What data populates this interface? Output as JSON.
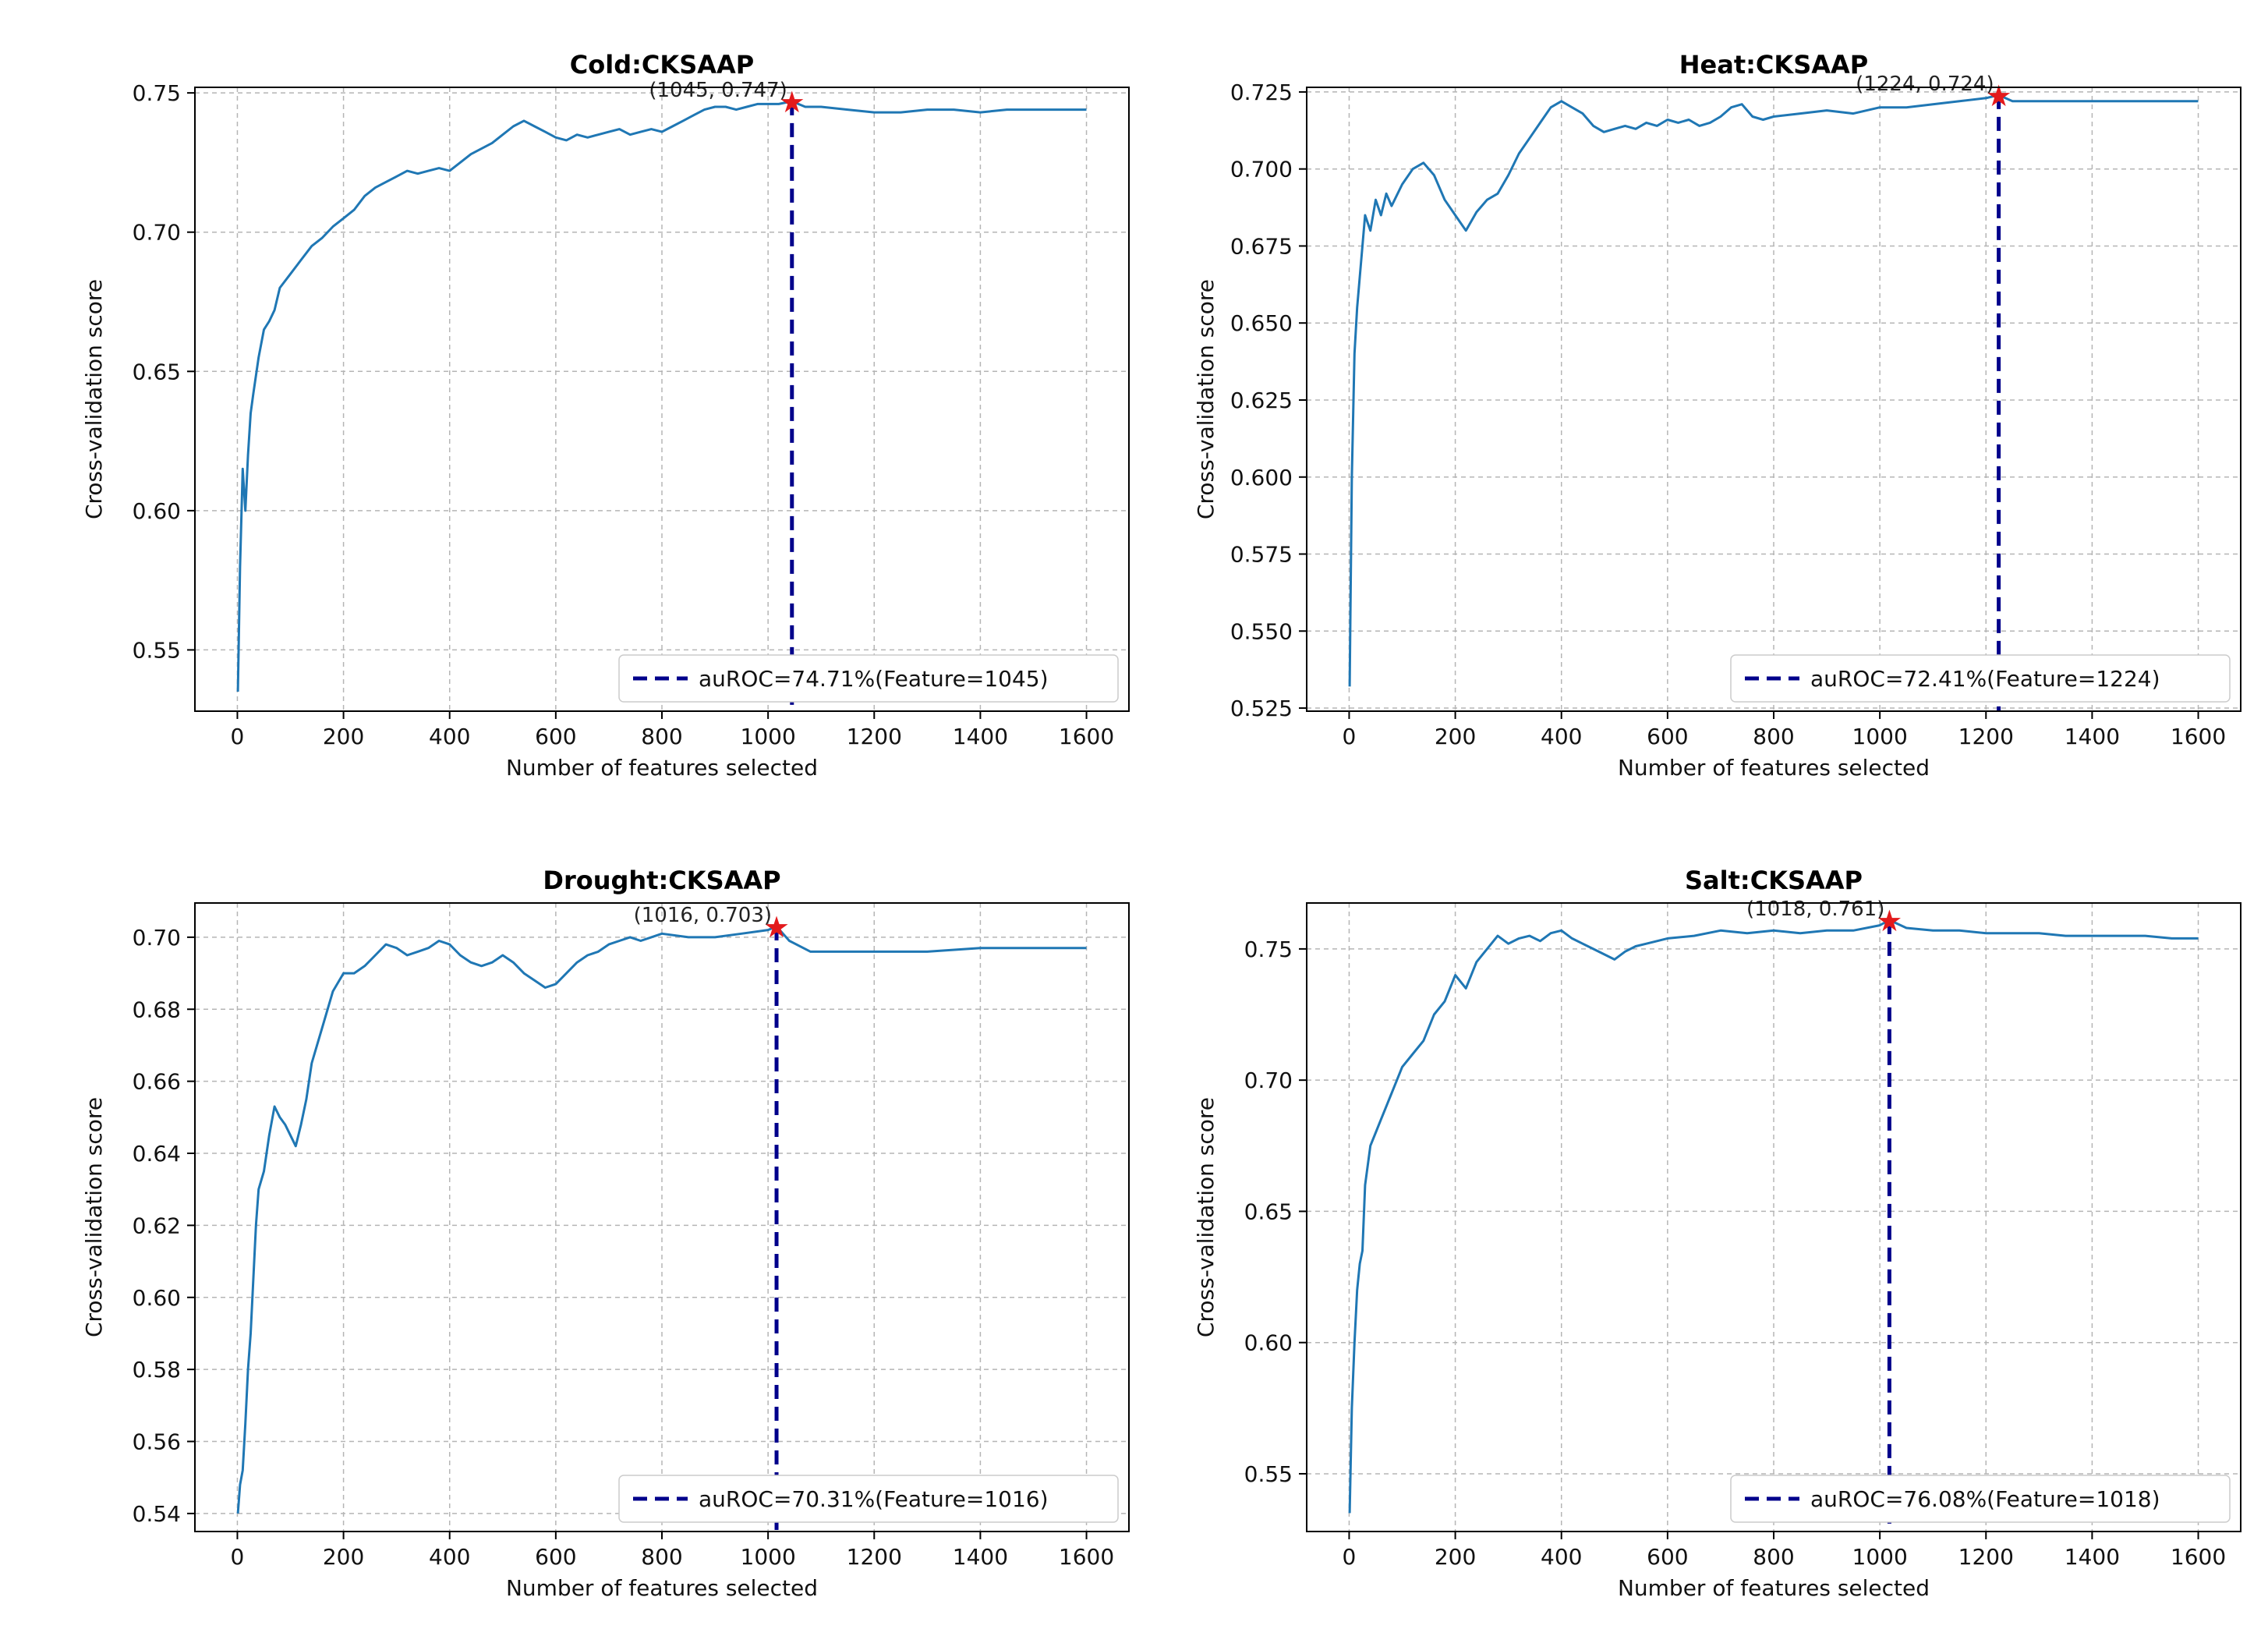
{
  "chart_data": [
    {
      "type": "line",
      "title": "Cold:CKSAAP",
      "xlabel": "Number of features selected",
      "ylabel": "Cross-validation score",
      "xlim": [
        -80,
        1680
      ],
      "ylim": [
        0.528,
        0.752
      ],
      "xticks": [
        0,
        200,
        400,
        600,
        800,
        1000,
        1200,
        1400,
        1600
      ],
      "yticks": [
        0.55,
        0.6,
        0.65,
        0.7,
        0.75
      ],
      "ytick_labels": [
        "0.55",
        "0.60",
        "0.65",
        "0.70",
        "0.75"
      ],
      "grid": true,
      "legend_position": "lower-right",
      "legend": "auROC=74.71%(Feature=1045)",
      "best_point": {
        "x": 1045,
        "y": 0.747
      },
      "best_label": "(1045, 0.747)",
      "series": [
        {
          "x": [
            1,
            5,
            10,
            15,
            20,
            25,
            30,
            40,
            50,
            60,
            70,
            80,
            100,
            120,
            140,
            160,
            180,
            200,
            220,
            240,
            260,
            280,
            300,
            320,
            340,
            360,
            380,
            400,
            420,
            440,
            460,
            480,
            500,
            520,
            540,
            560,
            580,
            600,
            620,
            640,
            660,
            680,
            700,
            720,
            740,
            760,
            780,
            800,
            820,
            840,
            860,
            880,
            900,
            920,
            940,
            960,
            980,
            1000,
            1020,
            1045,
            1070,
            1100,
            1150,
            1200,
            1250,
            1300,
            1350,
            1400,
            1450,
            1500,
            1550,
            1600
          ],
          "y": [
            0.535,
            0.58,
            0.615,
            0.6,
            0.62,
            0.635,
            0.642,
            0.655,
            0.665,
            0.668,
            0.672,
            0.68,
            0.685,
            0.69,
            0.695,
            0.698,
            0.702,
            0.705,
            0.708,
            0.713,
            0.716,
            0.718,
            0.72,
            0.722,
            0.721,
            0.722,
            0.723,
            0.722,
            0.725,
            0.728,
            0.73,
            0.732,
            0.735,
            0.738,
            0.74,
            0.738,
            0.736,
            0.734,
            0.733,
            0.735,
            0.734,
            0.735,
            0.736,
            0.737,
            0.735,
            0.736,
            0.737,
            0.736,
            0.738,
            0.74,
            0.742,
            0.744,
            0.745,
            0.745,
            0.744,
            0.745,
            0.746,
            0.746,
            0.746,
            0.747,
            0.745,
            0.745,
            0.744,
            0.743,
            0.743,
            0.744,
            0.744,
            0.743,
            0.744,
            0.744,
            0.744,
            0.744
          ]
        }
      ]
    },
    {
      "type": "line",
      "title": "Heat:CKSAAP",
      "xlabel": "Number of features selected",
      "ylabel": "Cross-validation score",
      "xlim": [
        -80,
        1680
      ],
      "ylim": [
        0.524,
        0.7265
      ],
      "xticks": [
        0,
        200,
        400,
        600,
        800,
        1000,
        1200,
        1400,
        1600
      ],
      "yticks": [
        0.525,
        0.55,
        0.575,
        0.6,
        0.625,
        0.65,
        0.675,
        0.7,
        0.725
      ],
      "ytick_labels": [
        "0.525",
        "0.550",
        "0.575",
        "0.600",
        "0.625",
        "0.650",
        "0.675",
        "0.700",
        "0.725"
      ],
      "grid": true,
      "legend_position": "lower-right",
      "legend": "auROC=72.41%(Feature=1224)",
      "best_point": {
        "x": 1224,
        "y": 0.724
      },
      "best_label": "(1224, 0.724)",
      "series": [
        {
          "x": [
            1,
            5,
            10,
            15,
            20,
            25,
            30,
            40,
            50,
            60,
            70,
            80,
            100,
            120,
            140,
            160,
            180,
            200,
            220,
            240,
            260,
            280,
            300,
            320,
            340,
            360,
            380,
            400,
            420,
            440,
            460,
            480,
            500,
            520,
            540,
            560,
            580,
            600,
            620,
            640,
            660,
            680,
            700,
            720,
            740,
            760,
            780,
            800,
            850,
            900,
            950,
            1000,
            1050,
            1100,
            1150,
            1200,
            1224,
            1250,
            1300,
            1350,
            1400,
            1450,
            1500,
            1550,
            1600
          ],
          "y": [
            0.532,
            0.6,
            0.64,
            0.655,
            0.665,
            0.675,
            0.685,
            0.68,
            0.69,
            0.685,
            0.692,
            0.688,
            0.695,
            0.7,
            0.702,
            0.698,
            0.69,
            0.685,
            0.68,
            0.686,
            0.69,
            0.692,
            0.698,
            0.705,
            0.71,
            0.715,
            0.72,
            0.722,
            0.72,
            0.718,
            0.714,
            0.712,
            0.713,
            0.714,
            0.713,
            0.715,
            0.714,
            0.716,
            0.715,
            0.716,
            0.714,
            0.715,
            0.717,
            0.72,
            0.721,
            0.717,
            0.716,
            0.717,
            0.718,
            0.719,
            0.718,
            0.72,
            0.72,
            0.721,
            0.722,
            0.723,
            0.724,
            0.722,
            0.722,
            0.722,
            0.722,
            0.722,
            0.722,
            0.722,
            0.722
          ]
        }
      ]
    },
    {
      "type": "line",
      "title": "Drought:CKSAAP",
      "xlabel": "Number of features selected",
      "ylabel": "Cross-validation score",
      "xlim": [
        -80,
        1680
      ],
      "ylim": [
        0.535,
        0.7095
      ],
      "xticks": [
        0,
        200,
        400,
        600,
        800,
        1000,
        1200,
        1400,
        1600
      ],
      "yticks": [
        0.54,
        0.56,
        0.58,
        0.6,
        0.62,
        0.64,
        0.66,
        0.68,
        0.7
      ],
      "ytick_labels": [
        "0.54",
        "0.56",
        "0.58",
        "0.60",
        "0.62",
        "0.64",
        "0.66",
        "0.68",
        "0.70"
      ],
      "grid": true,
      "legend_position": "lower-right",
      "legend": "auROC=70.31%(Feature=1016)",
      "best_point": {
        "x": 1016,
        "y": 0.703
      },
      "best_label": "(1016, 0.703)",
      "series": [
        {
          "x": [
            1,
            5,
            10,
            15,
            20,
            25,
            30,
            35,
            40,
            50,
            60,
            70,
            80,
            90,
            100,
            110,
            120,
            130,
            140,
            150,
            160,
            170,
            180,
            200,
            220,
            240,
            260,
            280,
            300,
            320,
            340,
            360,
            380,
            400,
            420,
            440,
            460,
            480,
            500,
            520,
            540,
            560,
            580,
            600,
            620,
            640,
            660,
            680,
            700,
            720,
            740,
            760,
            780,
            800,
            850,
            900,
            950,
            1000,
            1016,
            1040,
            1080,
            1150,
            1200,
            1300,
            1400,
            1500,
            1600
          ],
          "y": [
            0.54,
            0.548,
            0.552,
            0.565,
            0.58,
            0.59,
            0.605,
            0.62,
            0.63,
            0.635,
            0.645,
            0.653,
            0.65,
            0.648,
            0.645,
            0.642,
            0.648,
            0.655,
            0.665,
            0.67,
            0.675,
            0.68,
            0.685,
            0.69,
            0.69,
            0.692,
            0.695,
            0.698,
            0.697,
            0.695,
            0.696,
            0.697,
            0.699,
            0.698,
            0.695,
            0.693,
            0.692,
            0.693,
            0.695,
            0.693,
            0.69,
            0.688,
            0.686,
            0.687,
            0.69,
            0.693,
            0.695,
            0.696,
            0.698,
            0.699,
            0.7,
            0.699,
            0.7,
            0.701,
            0.7,
            0.7,
            0.701,
            0.702,
            0.703,
            0.699,
            0.696,
            0.696,
            0.696,
            0.696,
            0.697,
            0.697,
            0.697
          ]
        }
      ]
    },
    {
      "type": "line",
      "title": "Salt:CKSAAP",
      "xlabel": "Number of features selected",
      "ylabel": "Cross-validation score",
      "xlim": [
        -80,
        1680
      ],
      "ylim": [
        0.528,
        0.7675
      ],
      "xticks": [
        0,
        200,
        400,
        600,
        800,
        1000,
        1200,
        1400,
        1600
      ],
      "yticks": [
        0.55,
        0.6,
        0.65,
        0.7,
        0.75
      ],
      "ytick_labels": [
        "0.55",
        "0.60",
        "0.65",
        "0.70",
        "0.75"
      ],
      "grid": true,
      "legend_position": "lower-right",
      "legend": "auROC=76.08%(Feature=1018)",
      "best_point": {
        "x": 1018,
        "y": 0.761
      },
      "best_label": "(1018, 0.761)",
      "series": [
        {
          "x": [
            1,
            5,
            10,
            15,
            20,
            25,
            30,
            40,
            50,
            60,
            70,
            80,
            90,
            100,
            120,
            140,
            160,
            180,
            200,
            220,
            240,
            260,
            280,
            300,
            320,
            340,
            360,
            380,
            400,
            420,
            440,
            460,
            480,
            500,
            520,
            540,
            560,
            580,
            600,
            650,
            700,
            750,
            800,
            850,
            900,
            950,
            1000,
            1018,
            1050,
            1100,
            1150,
            1200,
            1250,
            1300,
            1350,
            1400,
            1450,
            1500,
            1550,
            1600
          ],
          "y": [
            0.535,
            0.575,
            0.6,
            0.62,
            0.63,
            0.635,
            0.66,
            0.675,
            0.68,
            0.685,
            0.69,
            0.695,
            0.7,
            0.705,
            0.71,
            0.715,
            0.725,
            0.73,
            0.74,
            0.735,
            0.745,
            0.75,
            0.755,
            0.752,
            0.754,
            0.755,
            0.753,
            0.756,
            0.757,
            0.754,
            0.752,
            0.75,
            0.748,
            0.746,
            0.749,
            0.751,
            0.752,
            0.753,
            0.754,
            0.755,
            0.757,
            0.756,
            0.757,
            0.756,
            0.757,
            0.757,
            0.759,
            0.761,
            0.758,
            0.757,
            0.757,
            0.756,
            0.756,
            0.756,
            0.755,
            0.755,
            0.755,
            0.755,
            0.754,
            0.754
          ]
        }
      ]
    }
  ]
}
